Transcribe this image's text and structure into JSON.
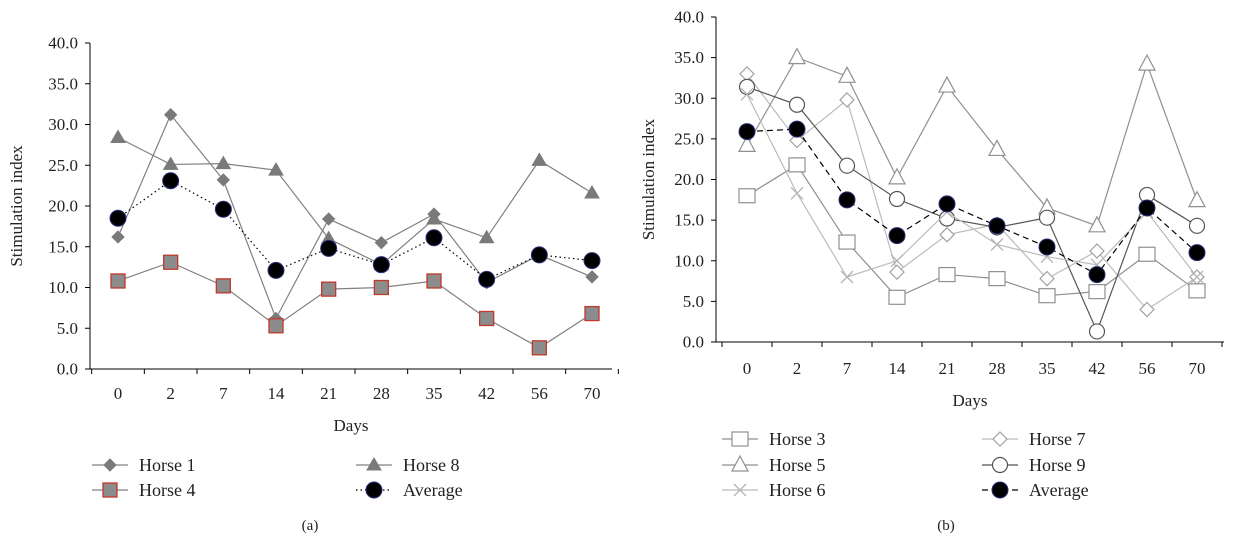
{
  "chart_data": [
    {
      "type": "line",
      "panel_label": "(a)",
      "xlabel": "Days",
      "ylabel": "Stimulation index",
      "categories": [
        "0",
        "2",
        "7",
        "14",
        "21",
        "28",
        "35",
        "42",
        "56",
        "70"
      ],
      "ylim": [
        0,
        40
      ],
      "yticks": [
        "0.0",
        "5.0",
        "10.0",
        "15.0",
        "20.0",
        "25.0",
        "30.0",
        "35.0",
        "40.0"
      ],
      "grid": false,
      "legend_position": "bottom",
      "series": [
        {
          "name": "Horse 1",
          "marker": "diamond",
          "values": [
            16.2,
            31.2,
            23.2,
            6.2,
            18.4,
            15.5,
            19.0,
            10.6,
            14.0,
            11.3
          ],
          "color": "#808080",
          "dash": "solid"
        },
        {
          "name": "Horse 8",
          "marker": "triangle",
          "values": [
            28.4,
            25.1,
            25.2,
            24.4,
            16.0,
            12.8,
            18.4,
            16.1,
            25.6,
            21.6
          ],
          "color": "#808080",
          "dash": "solid"
        },
        {
          "name": "Horse 4",
          "marker": "square-red",
          "values": [
            10.8,
            13.1,
            10.2,
            5.3,
            9.8,
            10.0,
            10.8,
            6.2,
            2.6,
            6.8
          ],
          "color": "#808080",
          "dash": "solid"
        },
        {
          "name": "Average",
          "marker": "dot-black",
          "values": [
            18.5,
            23.1,
            19.6,
            12.1,
            14.8,
            12.8,
            16.1,
            11.0,
            14.0,
            13.3
          ],
          "color": "#000000",
          "dash": "dotted"
        }
      ]
    },
    {
      "type": "line",
      "panel_label": "(b)",
      "xlabel": "Days",
      "ylabel": "Stimulation index",
      "categories": [
        "0",
        "2",
        "7",
        "14",
        "21",
        "28",
        "35",
        "42",
        "56",
        "70"
      ],
      "ylim": [
        0,
        40
      ],
      "yticks": [
        "0.0",
        "5.0",
        "10.0",
        "15.0",
        "20.0",
        "25.0",
        "30.0",
        "35.0",
        "40.0"
      ],
      "grid": false,
      "legend_position": "bottom",
      "series": [
        {
          "name": "Horse 3",
          "marker": "square-open",
          "values": [
            18.0,
            21.8,
            12.3,
            5.5,
            8.3,
            7.8,
            5.7,
            6.2,
            10.8,
            6.3
          ],
          "color": "#909090",
          "dash": "solid"
        },
        {
          "name": "Horse 7",
          "marker": "diamond-open",
          "values": [
            33.0,
            24.8,
            29.8,
            8.6,
            13.2,
            14.5,
            7.8,
            11.2,
            4.0,
            8.0
          ],
          "color": "#bbbbbb",
          "dash": "solid"
        },
        {
          "name": "Horse 5",
          "marker": "triangle-open",
          "values": [
            24.2,
            35.0,
            32.7,
            20.2,
            31.5,
            23.7,
            16.5,
            14.3,
            34.2,
            17.4
          ],
          "color": "#909090",
          "dash": "solid"
        },
        {
          "name": "Horse 9",
          "marker": "circle-open",
          "values": [
            31.4,
            29.2,
            21.7,
            17.6,
            15.2,
            14.1,
            15.3,
            1.3,
            18.1,
            14.3
          ],
          "color": "#555555",
          "dash": "solid"
        },
        {
          "name": "Horse 6",
          "marker": "x",
          "values": [
            30.5,
            18.3,
            8.0,
            10.0,
            16.0,
            12.0,
            10.5,
            9.5,
            16.0,
            8.0
          ],
          "color": "#bbbbbb",
          "dash": "solid"
        },
        {
          "name": "Average",
          "marker": "dot-black",
          "values": [
            25.9,
            26.2,
            17.5,
            13.1,
            17.0,
            14.3,
            11.7,
            8.3,
            16.5,
            11.0
          ],
          "color": "#000000",
          "dash": "dashed"
        }
      ]
    }
  ]
}
